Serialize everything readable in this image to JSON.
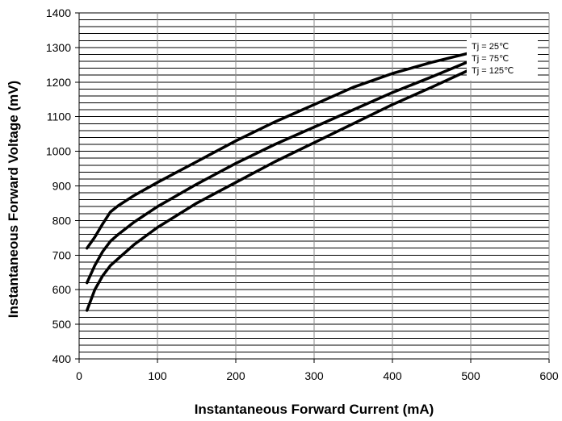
{
  "chart_data": {
    "type": "line",
    "title": "",
    "xlabel": "Instantaneous Forward Current (mA)",
    "ylabel": "Instantaneous Forward Voltage (mV)",
    "xlim": [
      0,
      600
    ],
    "ylim": [
      400,
      1400
    ],
    "x_ticks": [
      0,
      100,
      200,
      300,
      400,
      500,
      600
    ],
    "y_ticks": [
      400,
      500,
      600,
      700,
      800,
      900,
      1000,
      1100,
      1200,
      1300,
      1400
    ],
    "x_minor_step": 20,
    "y_minor_step": 20,
    "grid": true,
    "legend_position": "top-right",
    "line_color": "#000000",
    "series": [
      {
        "name": "Tj = 25℃",
        "x": [
          10,
          20,
          30,
          40,
          50,
          70,
          100,
          150,
          200,
          250,
          300,
          350,
          400,
          450,
          500
        ],
        "y": [
          720,
          752,
          790,
          825,
          843,
          872,
          910,
          970,
          1030,
          1085,
          1135,
          1185,
          1225,
          1257,
          1285
        ]
      },
      {
        "name": "Tj = 75℃",
        "x": [
          10,
          20,
          30,
          40,
          50,
          70,
          100,
          150,
          200,
          250,
          300,
          350,
          400,
          450,
          500
        ],
        "y": [
          620,
          670,
          710,
          740,
          760,
          795,
          840,
          905,
          965,
          1020,
          1070,
          1120,
          1170,
          1215,
          1262
        ]
      },
      {
        "name": "Tj = 125℃",
        "x": [
          10,
          20,
          30,
          40,
          50,
          70,
          100,
          150,
          200,
          250,
          300,
          350,
          400,
          450,
          500
        ],
        "y": [
          540,
          600,
          640,
          670,
          690,
          730,
          780,
          850,
          910,
          970,
          1025,
          1080,
          1135,
          1185,
          1237
        ]
      }
    ]
  }
}
